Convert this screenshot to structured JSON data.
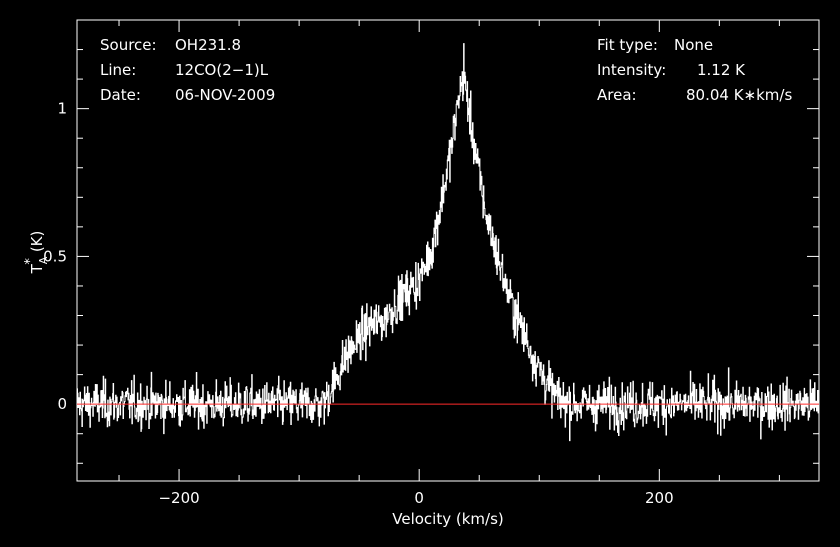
{
  "chart_data": {
    "type": "line",
    "xlabel": "Velocity (km/s)",
    "ylabel": "T",
    "ylabel_sub": "A",
    "ylabel_sup": "*",
    "ylabel_unit": "(K)",
    "xlim": [
      -285,
      333
    ],
    "ylim": [
      -0.26,
      1.3
    ],
    "x_ticks": [
      -200,
      0,
      200
    ],
    "y_ticks": [
      0,
      0.5,
      1
    ],
    "x_tick_labels": [
      "−200",
      "0",
      "200"
    ],
    "y_tick_labels": [
      "0",
      "0.5",
      "1"
    ],
    "grid": false,
    "series_color": "#ffffff",
    "baseline_color": "#ff2a2a",
    "baseline_value": 0,
    "noise_rms": 0.055,
    "profile_points": [
      [
        -285,
        0.0
      ],
      [
        -80,
        0.0
      ],
      [
        -70,
        0.08
      ],
      [
        -60,
        0.17
      ],
      [
        -50,
        0.22
      ],
      [
        -40,
        0.27
      ],
      [
        -30,
        0.28
      ],
      [
        -20,
        0.34
      ],
      [
        -10,
        0.38
      ],
      [
        0,
        0.42
      ],
      [
        10,
        0.52
      ],
      [
        20,
        0.72
      ],
      [
        28,
        0.9
      ],
      [
        33,
        1.05
      ],
      [
        37,
        1.1
      ],
      [
        42,
        0.98
      ],
      [
        48,
        0.82
      ],
      [
        55,
        0.65
      ],
      [
        65,
        0.5
      ],
      [
        75,
        0.36
      ],
      [
        85,
        0.26
      ],
      [
        95,
        0.16
      ],
      [
        105,
        0.08
      ],
      [
        115,
        0.02
      ],
      [
        125,
        0.0
      ],
      [
        333,
        0.0
      ]
    ],
    "peak_spike": {
      "x": 37,
      "y": 1.22
    }
  },
  "info_left": [
    {
      "label": "Source:",
      "value": "OH231.8"
    },
    {
      "label": "Line:",
      "value": "12CO(2−1)L"
    },
    {
      "label": "Date:",
      "value": "06-NOV-2009"
    }
  ],
  "info_right": [
    {
      "label": "Fit type:",
      "value": "None"
    },
    {
      "label": "Intensity:",
      "value": "1.12 K"
    },
    {
      "label": "Area:",
      "value": "80.04 K∗km/s"
    }
  ]
}
